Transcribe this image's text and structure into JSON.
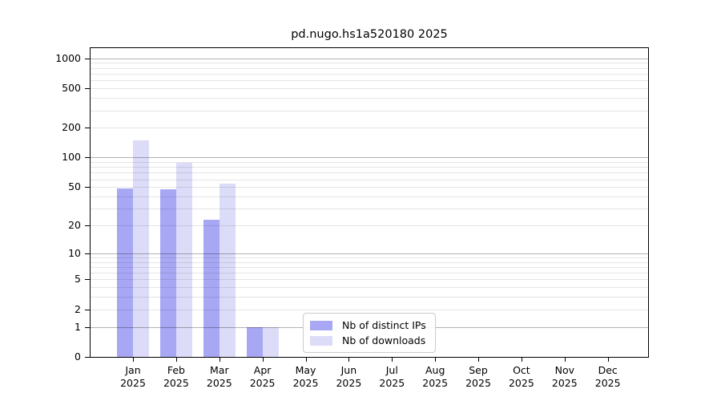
{
  "title": "pd.nugo.hs1a520180 2025",
  "chart_data": {
    "type": "bar",
    "title": "pd.nugo.hs1a520180 2025",
    "categories": [
      "Jan",
      "Feb",
      "Mar",
      "Apr",
      "May",
      "Jun",
      "Jul",
      "Aug",
      "Sep",
      "Oct",
      "Nov",
      "Dec"
    ],
    "x_tick_year": "2025",
    "series": [
      {
        "name": "Nb of distinct IPs",
        "color": "#a7a7f4",
        "values": [
          48,
          47,
          23,
          1,
          0,
          0,
          0,
          0,
          0,
          0,
          0,
          0
        ]
      },
      {
        "name": "Nb of downloads",
        "color": "#dcdcf8",
        "values": [
          150,
          88,
          54,
          1,
          0,
          0,
          0,
          0,
          0,
          0,
          0,
          0
        ]
      }
    ],
    "y_scale": "log10(1+y)",
    "y_ticks": [
      0,
      1,
      2,
      5,
      10,
      20,
      50,
      100,
      200,
      500,
      1000
    ],
    "ylim": [
      0,
      1266
    ],
    "grid": true,
    "legend_position": "inside-bottom-center",
    "colors": {
      "background": "#ffffff",
      "axis": "#000000",
      "grid_minor": "rgba(0,0,0,0.10)",
      "grid_major": "rgba(0,0,0,0.30)",
      "legend_border": "#cccccc"
    }
  }
}
